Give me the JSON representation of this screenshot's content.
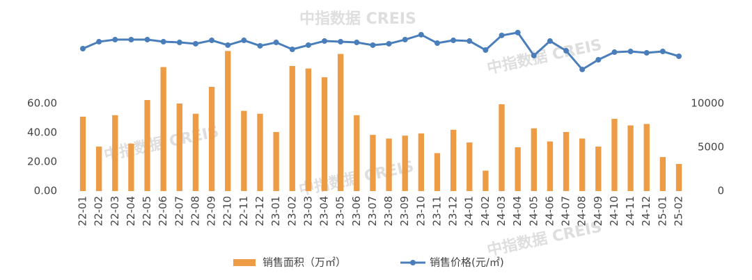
{
  "chart_data": {
    "type": "bar-line",
    "watermark": "中指数据 CREIS",
    "categories": [
      "22-01",
      "22-02",
      "22-03",
      "22-04",
      "22-05",
      "22-06",
      "22-07",
      "22-08",
      "22-09",
      "22-10",
      "22-11",
      "22-12",
      "23-01",
      "23-02",
      "23-03",
      "23-04",
      "23-05",
      "23-06",
      "23-07",
      "23-08",
      "23-09",
      "23-10",
      "23-11",
      "23-12",
      "24-01",
      "24-02",
      "24-03",
      "24-04",
      "24-05",
      "24-06",
      "24-07",
      "24-08",
      "24-09",
      "24-10",
      "24-11",
      "24-12",
      "25-01",
      "25-02"
    ],
    "series": [
      {
        "name": "销售面积（万㎡）",
        "type": "bar",
        "color": "#ed9c45",
        "values": [
          51,
          30.5,
          52,
          32.5,
          62.4,
          85,
          60,
          53,
          71.4,
          96,
          55,
          53,
          40.5,
          85.7,
          84,
          78,
          94,
          52,
          38.5,
          36,
          38,
          39.5,
          26,
          42,
          33.3,
          14,
          59.5,
          30,
          43,
          34,
          40.5,
          36,
          30.5,
          49.5,
          45,
          46,
          23.3,
          18.6
        ]
      },
      {
        "name": "销售价格(元/㎡)",
        "type": "line",
        "axis": "y2",
        "color": "#4a7ebb",
        "values": [
          16270,
          17060,
          17300,
          17300,
          17300,
          17060,
          16980,
          16830,
          17220,
          16670,
          17220,
          16590,
          16980,
          16190,
          16670,
          17140,
          17060,
          16980,
          16670,
          16830,
          17300,
          17860,
          16900,
          17220,
          17140,
          16110,
          17780,
          18100,
          15480,
          17140,
          16030,
          13890,
          15000,
          15870,
          15950,
          15790,
          15950,
          15400
        ]
      }
    ],
    "ylim": [
      0,
      110
    ],
    "yticks": [
      {
        "value": 0,
        "label": "0.00"
      },
      {
        "value": 20,
        "label": "20.00"
      },
      {
        "value": 40,
        "label": "40.00"
      },
      {
        "value": 60,
        "label": "60.00"
      }
    ],
    "y2lim": [
      0,
      18333
    ],
    "y2ticks": [
      0,
      5000,
      10000
    ],
    "legend": "bottom"
  }
}
